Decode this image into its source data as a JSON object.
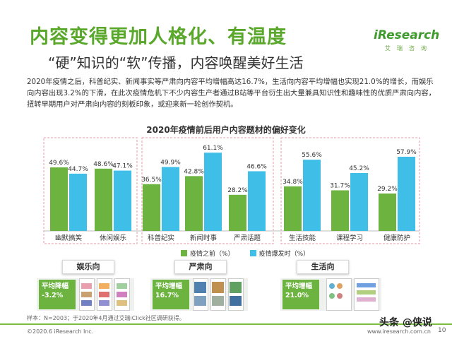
{
  "header": {
    "title": "内容变得更加人格化、有温度",
    "subtitle": "“硬”知识的“软”传播，内容唤醒美好生活",
    "logo_text": "iResearch",
    "logo_cn": "艾瑞咨询"
  },
  "description": "2020年疫情之后，科普纪实、新闻事实等严肃向内容平均增幅高达16.7%，生活向内容平均增幅也实现21.0%的增长，而娱乐向内容出现3.2%的下滑，在此次疫情危机下不少内容生产者通过B站等平台衍生出大量兼具知识性和趣味性的优质严肃向内容，扭转早期用户对严肃向内容的刻板印象，或迎来新一轮创作契机。",
  "chart_data": {
    "type": "bar",
    "title": "2020年疫情前后用户内容题材的偏好变化",
    "categories": [
      "幽默搞笑",
      "休闲娱乐",
      "科普纪实",
      "新闻时事",
      "严肃话题",
      "生活技能",
      "课程学习",
      "健康防护"
    ],
    "series": [
      {
        "name": "疫情之前（%）",
        "values": [
          49.6,
          48.6,
          36.5,
          42.8,
          28.2,
          34.8,
          31.7,
          29.2
        ],
        "labels": [
          "49.6%",
          "48.6%",
          "36.5%",
          "42.8%",
          "28.2%",
          "34.8%",
          "31.7%",
          "29.2%"
        ]
      },
      {
        "name": "疫情爆发时（%）",
        "values": [
          44.7,
          47.1,
          49.9,
          61.1,
          46.6,
          55.6,
          45.2,
          57.9
        ],
        "labels": [
          "44.7%",
          "47.1%",
          "49.9%",
          "61.1%",
          "46.6%",
          "55.6%",
          "45.2%",
          "57.9%"
        ]
      }
    ],
    "ylim": [
      0,
      70
    ],
    "groups": [
      "娱乐向",
      "严肃向",
      "生活向"
    ],
    "colors": {
      "before": "#6cb33f",
      "after": "#3fbfe8",
      "group_border": "#e89aa8"
    }
  },
  "panels": [
    {
      "name": "娱乐向",
      "badge_label": "平均降幅",
      "badge_value": "-3.2%"
    },
    {
      "name": "严肃向",
      "badge_label": "平均增幅",
      "badge_value": "16.7%"
    },
    {
      "name": "生活向",
      "badge_label": "平均增幅",
      "badge_value": "21.0%"
    }
  ],
  "footnote": "样本：N=2003；于2020年4月通过艾瑞iClick社区调研获得。",
  "footer": {
    "copyright": "©2020.6 iResearch Inc.",
    "site": "www.iresearch.com.cn",
    "page": "10",
    "watermark": "头条 @侠说"
  }
}
